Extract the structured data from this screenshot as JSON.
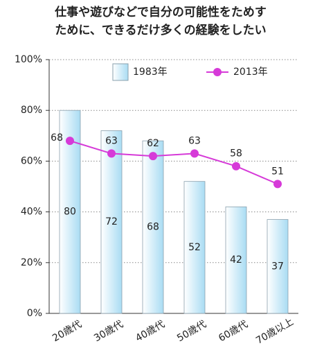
{
  "chart_data": {
    "type": "bar_line",
    "title": [
      "仕事や遊びなどで自分の可能性をためす",
      "ために、できるだけ多くの経験をしたい"
    ],
    "categories": [
      "20歳代",
      "30歳代",
      "40歳代",
      "50歳代",
      "60歳代",
      "70歳以上"
    ],
    "series": [
      {
        "name": "1983年",
        "type": "bar",
        "color": "#a9dcf3",
        "values": [
          80,
          72,
          68,
          52,
          42,
          37
        ]
      },
      {
        "name": "2013年",
        "type": "line",
        "color": "#d63ad8",
        "values": [
          68,
          63,
          62,
          63,
          58,
          51
        ]
      }
    ],
    "ylim": [
      0,
      100
    ],
    "yticks": [
      {
        "value": 0,
        "label": "0%"
      },
      {
        "value": 20,
        "label": "20%"
      },
      {
        "value": 40,
        "label": "40%"
      },
      {
        "value": 60,
        "label": "60%"
      },
      {
        "value": 80,
        "label": "80%"
      },
      {
        "value": 100,
        "label": "100%"
      }
    ],
    "grid": true
  }
}
